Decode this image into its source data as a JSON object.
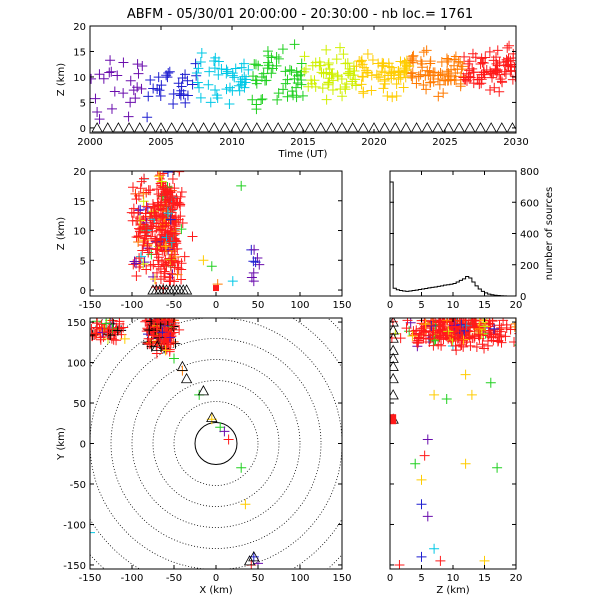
{
  "title": "ABFM - 05/30/01 20:00:00 - 20:30:00 - nb loc.=    1761",
  "chart_data": [
    {
      "id": "time_height",
      "type": "scatter",
      "xlabel": "Time (UT)",
      "ylabel": "Z (km)",
      "xlim": [
        2000,
        2030
      ],
      "ylim": [
        -1,
        20
      ],
      "xticks": [
        "2000",
        "2005",
        "2010",
        "2015",
        "2020",
        "2025",
        "2030"
      ],
      "yticks": [
        "0",
        "5",
        "10",
        "15",
        "20"
      ],
      "colormap": [
        "#6a0dad",
        "#1f1fd0",
        "#00c8e6",
        "#20d020",
        "#d0f000",
        "#ffcc00",
        "#ff7a00",
        "#ff1a1a"
      ],
      "cluster": {
        "x_range": [
          2000,
          2030
        ],
        "z_mean_start": 8,
        "z_mean_end": 12,
        "z_spread": 3,
        "count": 420
      },
      "triangles_z": 0
    },
    {
      "id": "xz_projection",
      "type": "scatter",
      "xlabel": "",
      "ylabel": "Z (km)",
      "xlim": [
        -150,
        150
      ],
      "ylim": [
        -1,
        20
      ],
      "xticks": [
        "-150",
        "-100",
        "-50",
        "0",
        "50",
        "100",
        "150"
      ],
      "yticks": [
        "0",
        "5",
        "10",
        "15",
        "20"
      ],
      "clusters": [
        {
          "x": -85,
          "x_spread": 8,
          "z": 10,
          "z_spread": 4,
          "count": 110,
          "color": "mixed-red"
        },
        {
          "x": -57,
          "x_spread": 7,
          "z": 11,
          "z_spread": 5,
          "count": 260,
          "color": "mixed-red"
        },
        {
          "x": 45,
          "x_spread": 3,
          "z": 6,
          "z_spread": 2,
          "count": 8,
          "color": "purple"
        }
      ],
      "extra_points": [
        [
          -28,
          9
        ],
        [
          -15,
          5
        ],
        [
          -5,
          4
        ],
        [
          2,
          1
        ],
        [
          20,
          1.5
        ],
        [
          30,
          17.5
        ],
        [
          45,
          1.5
        ]
      ]
    },
    {
      "id": "height_histogram",
      "type": "bar",
      "xlabel": "",
      "ylabel": "number of sources",
      "xlim": [
        0,
        20
      ],
      "ylim": [
        0,
        800
      ],
      "xticks": [
        "0",
        "5",
        "10",
        "15",
        "20"
      ],
      "yticks": [
        "0",
        "200",
        "400",
        "600",
        "800"
      ],
      "bin_width": 0.5,
      "values": [
        730,
        50,
        40,
        35,
        32,
        30,
        32,
        35,
        38,
        42,
        45,
        48,
        52,
        55,
        58,
        62,
        65,
        70,
        72,
        75,
        80,
        90,
        100,
        110,
        125,
        115,
        90,
        65,
        45,
        30,
        20,
        12,
        8,
        5,
        3,
        2,
        1,
        0,
        0,
        0
      ]
    },
    {
      "id": "plan_view",
      "type": "scatter",
      "xlabel": "X (km)",
      "ylabel": "Y (km)",
      "xlim": [
        -150,
        150
      ],
      "ylim": [
        -155,
        155
      ],
      "xticks": [
        "-150",
        "-100",
        "-50",
        "0",
        "50",
        "100",
        "150"
      ],
      "yticks": [
        "-150",
        "-100",
        "-50",
        "0",
        "50",
        "100",
        "150"
      ],
      "range_rings_km": [
        25,
        50,
        75,
        100,
        125,
        150,
        175,
        200
      ],
      "clusters": [
        {
          "x": -65,
          "x_spread": 8,
          "y": 140,
          "y_spread": 10,
          "count": 280
        },
        {
          "x": -130,
          "x_spread": 10,
          "y": 140,
          "y_spread": 8,
          "count": 60
        }
      ],
      "extra_points": [
        [
          -60,
          115
        ],
        [
          -50,
          105
        ],
        [
          -40,
          90
        ],
        [
          -20,
          60
        ],
        [
          -5,
          30
        ],
        [
          5,
          20
        ],
        [
          10,
          15
        ],
        [
          15,
          5
        ],
        [
          30,
          -30
        ],
        [
          35,
          -75
        ],
        [
          45,
          -140
        ],
        [
          42,
          -150
        ],
        [
          -150,
          -110
        ],
        [
          50,
          -148
        ]
      ],
      "triangles": [
        [
          -70,
          120
        ],
        [
          -40,
          95
        ],
        [
          -35,
          80
        ],
        [
          -15,
          65
        ],
        [
          -5,
          32
        ],
        [
          40,
          -145
        ],
        [
          45,
          -140
        ]
      ]
    },
    {
      "id": "yz_projection",
      "type": "scatter",
      "xlabel": "Z (km)",
      "ylabel": "",
      "xlim": [
        0,
        20
      ],
      "ylim": [
        -155,
        155
      ],
      "xticks": [
        "0",
        "5",
        "10",
        "15",
        "20"
      ],
      "yticks": [],
      "clusters": [
        {
          "z": 11,
          "z_spread": 4,
          "y": 140,
          "y_spread": 10,
          "count": 300
        }
      ],
      "extra_points": [
        [
          7,
          60
        ],
        [
          9,
          55
        ],
        [
          13,
          60
        ],
        [
          6,
          5
        ],
        [
          5.5,
          -15
        ],
        [
          12,
          85
        ],
        [
          16,
          75
        ],
        [
          4,
          -25
        ],
        [
          5,
          -45
        ],
        [
          5,
          -75
        ],
        [
          6,
          -90
        ],
        [
          7,
          -130
        ],
        [
          5,
          -140
        ],
        [
          8,
          -145
        ],
        [
          15,
          -145
        ],
        [
          1.5,
          -150
        ],
        [
          17,
          -30
        ],
        [
          12,
          -25
        ]
      ],
      "triangles": [
        [
          0.5,
          150
        ],
        [
          0.5,
          140
        ],
        [
          0.5,
          130
        ],
        [
          0.5,
          115
        ],
        [
          0.5,
          105
        ],
        [
          0.5,
          95
        ],
        [
          0.5,
          80
        ],
        [
          0.5,
          60
        ],
        [
          0.5,
          30
        ]
      ]
    }
  ]
}
